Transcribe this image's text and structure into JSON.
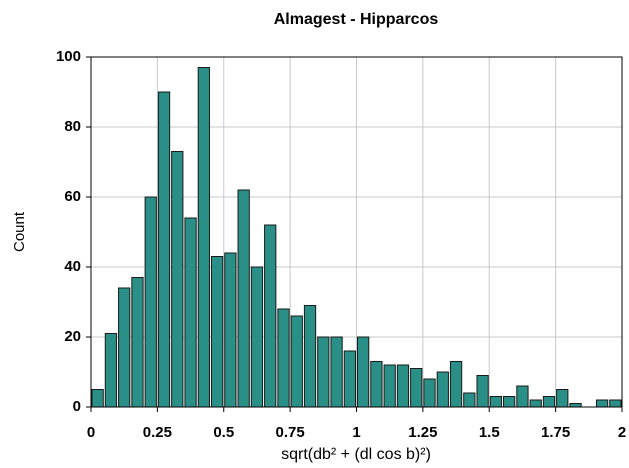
{
  "chart_data": {
    "type": "histogram",
    "title": "Almagest - Hipparcos",
    "x_label": "sqrt(db² + (dl cos b)²)",
    "y_label": "Count",
    "bins": [
      0,
      0.05,
      0.1,
      0.15,
      0.2,
      0.25,
      0.3,
      0.35,
      0.4,
      0.45,
      0.5,
      0.55,
      0.6,
      0.65,
      0.7,
      0.75,
      0.8,
      0.85,
      0.9,
      0.95,
      1,
      1.05,
      1.1,
      1.15,
      1.2,
      1.25,
      1.3,
      1.35,
      1.4,
      1.45,
      1.5,
      1.55,
      1.6,
      1.65,
      1.7,
      1.75,
      1.8,
      1.85,
      1.9,
      1.95,
      2
    ],
    "values": [
      5,
      21,
      34,
      37,
      60,
      90,
      73,
      54,
      97,
      43,
      44,
      62,
      40,
      52,
      28,
      26,
      29,
      20,
      20,
      16,
      20,
      13,
      12,
      12,
      11,
      8,
      10,
      13,
      4,
      9,
      3,
      3,
      6,
      2,
      3,
      5,
      1,
      0,
      2,
      2
    ],
    "color": "#2a8f87",
    "xlim": [
      0,
      2
    ],
    "xticks": [
      0,
      0.25,
      0.5,
      0.75,
      1,
      1.25,
      1.5,
      1.75,
      2
    ],
    "ylim": [
      0,
      100
    ],
    "yticks": [
      0,
      20,
      40,
      60,
      80,
      100
    ],
    "grid": true
  }
}
